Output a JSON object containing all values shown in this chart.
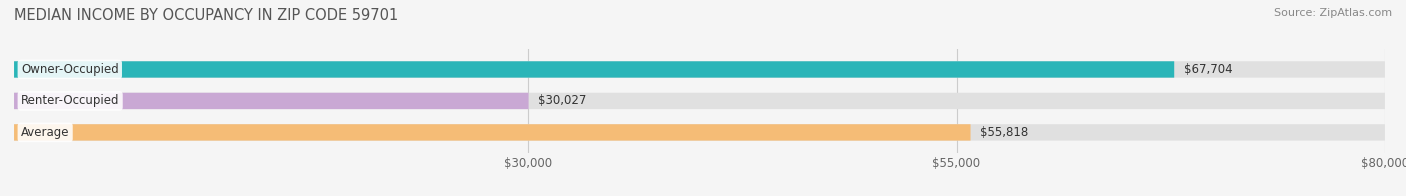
{
  "title": "MEDIAN INCOME BY OCCUPANCY IN ZIP CODE 59701",
  "source": "Source: ZipAtlas.com",
  "categories": [
    "Owner-Occupied",
    "Renter-Occupied",
    "Average"
  ],
  "values": [
    67704,
    30027,
    55818
  ],
  "colors": [
    "#2ab5b8",
    "#c9a8d4",
    "#f5bc76"
  ],
  "bar_labels": [
    "$67,704",
    "$30,027",
    "$55,818"
  ],
  "xlim": [
    0,
    80000
  ],
  "xticks": [
    30000,
    55000,
    80000
  ],
  "xticklabels": [
    "$30,000",
    "$55,000",
    "$80,000"
  ],
  "bg_color": "#f5f5f5",
  "bar_bg_color": "#e0e0e0",
  "title_fontsize": 10.5,
  "source_fontsize": 8,
  "label_fontsize": 8.5,
  "tick_fontsize": 8.5
}
